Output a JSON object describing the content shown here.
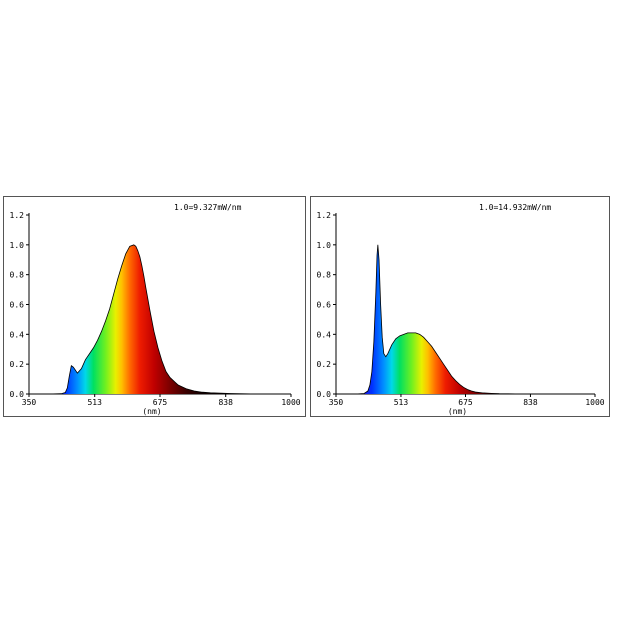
{
  "chart_data": [
    {
      "type": "area",
      "reference_label": "1.0=9.327mW/nm",
      "xlabel": "(nm)",
      "ylabel": "",
      "xlim": [
        350,
        1000
      ],
      "ylim": [
        0,
        1.2
      ],
      "x_ticks": [
        "350",
        "513",
        "675",
        "838",
        "1000"
      ],
      "y_ticks": [
        "0.0",
        "0.2",
        "0.4",
        "0.6",
        "0.8",
        "1.0",
        "1.2"
      ],
      "fill": "visible-spectrum gradient",
      "series": [
        {
          "x": [
            350,
            400,
            430,
            440,
            445,
            450,
            455,
            460,
            465,
            470,
            480,
            490,
            500,
            510,
            520,
            530,
            540,
            550,
            560,
            570,
            580,
            590,
            600,
            610,
            615,
            620,
            625,
            630,
            635,
            640,
            650,
            660,
            670,
            680,
            690,
            700,
            720,
            740,
            760,
            780,
            800,
            850,
            900,
            1000
          ],
          "values": [
            0,
            0,
            0.002,
            0.01,
            0.04,
            0.12,
            0.19,
            0.18,
            0.16,
            0.14,
            0.17,
            0.23,
            0.27,
            0.31,
            0.36,
            0.42,
            0.49,
            0.57,
            0.67,
            0.77,
            0.86,
            0.94,
            0.99,
            1.0,
            0.99,
            0.96,
            0.92,
            0.86,
            0.79,
            0.71,
            0.56,
            0.42,
            0.31,
            0.22,
            0.15,
            0.11,
            0.06,
            0.035,
            0.02,
            0.012,
            0.008,
            0.003,
            0.001,
            0
          ]
        }
      ]
    },
    {
      "type": "area",
      "reference_label": "1.0=14.932mW/nm",
      "xlabel": "(nm)",
      "ylabel": "",
      "xlim": [
        350,
        1000
      ],
      "ylim": [
        0,
        1.2
      ],
      "x_ticks": [
        "350",
        "513",
        "675",
        "838",
        "1000"
      ],
      "y_ticks": [
        "0.0",
        "0.2",
        "0.4",
        "0.6",
        "0.8",
        "1.0",
        "1.2"
      ],
      "fill": "visible-spectrum gradient",
      "series": [
        {
          "x": [
            350,
            400,
            420,
            430,
            435,
            440,
            445,
            450,
            453,
            455,
            458,
            462,
            466,
            470,
            475,
            480,
            490,
            500,
            510,
            520,
            530,
            540,
            550,
            560,
            570,
            580,
            590,
            600,
            610,
            620,
            630,
            640,
            650,
            660,
            670,
            680,
            690,
            700,
            720,
            740,
            760,
            800,
            850,
            1000
          ],
          "values": [
            0,
            0,
            0.003,
            0.02,
            0.06,
            0.15,
            0.35,
            0.68,
            0.93,
            1.0,
            0.9,
            0.6,
            0.38,
            0.27,
            0.25,
            0.27,
            0.33,
            0.37,
            0.39,
            0.4,
            0.41,
            0.41,
            0.41,
            0.4,
            0.38,
            0.35,
            0.32,
            0.28,
            0.24,
            0.2,
            0.16,
            0.12,
            0.09,
            0.065,
            0.045,
            0.03,
            0.02,
            0.013,
            0.007,
            0.004,
            0.002,
            0.001,
            0,
            0
          ]
        }
      ]
    }
  ]
}
